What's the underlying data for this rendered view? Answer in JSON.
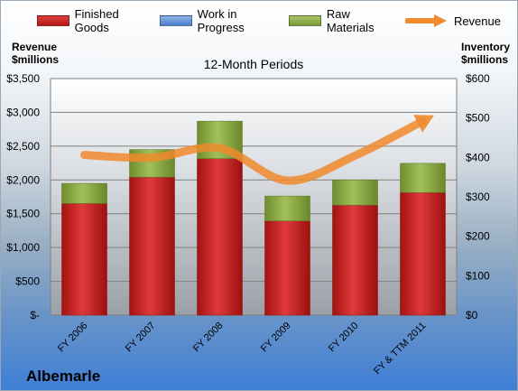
{
  "legend": {
    "finished_goods": "Finished Goods",
    "work_in_progress": "Work in Progress",
    "raw_materials": "Raw Materials",
    "revenue": "Revenue"
  },
  "colors": {
    "finished_goods": "#c81e1e",
    "work_in_progress": "#5b8ed6",
    "raw_materials": "#8fae48",
    "revenue": "#f08a2c"
  },
  "left_axis_title": [
    "Revenue",
    "$millions"
  ],
  "right_axis_title": [
    "Inventory",
    "$millions"
  ],
  "plot_title": "12-Month Periods",
  "company": "Albemarle",
  "chart_data": {
    "type": "bar",
    "stacked": true,
    "title": "12-Month Periods",
    "categories": [
      "FY 2006",
      "FY 2007",
      "FY 2008",
      "FY 2009",
      "FY 2010",
      "FY & TTM 2011"
    ],
    "series": [
      {
        "name": "Finished Goods",
        "axis": "right",
        "values": [
          283,
          350,
          397,
          239,
          279,
          311
        ]
      },
      {
        "name": "Work in Progress",
        "axis": "right",
        "values": [
          0,
          0,
          0,
          0,
          0,
          0
        ]
      },
      {
        "name": "Raw Materials",
        "axis": "right",
        "values": [
          51,
          70,
          95,
          63,
          64,
          74
        ]
      },
      {
        "name": "Revenue",
        "axis": "left",
        "type": "line",
        "values": [
          2370,
          2330,
          2470,
          1990,
          2360,
          2870
        ]
      }
    ],
    "left_axis": {
      "label": "Revenue $millions",
      "ylim": [
        0,
        3500
      ],
      "ticks": [
        "$-",
        "$500",
        "$1,000",
        "$1,500",
        "$2,000",
        "$2,500",
        "$3,000",
        "$3,500"
      ]
    },
    "right_axis": {
      "label": "Inventory $millions",
      "ylim": [
        0,
        600
      ],
      "ticks": [
        "$0",
        "$100",
        "$200",
        "$300",
        "$400",
        "$500",
        "$600"
      ]
    },
    "grid": true,
    "legend_position": "top"
  }
}
